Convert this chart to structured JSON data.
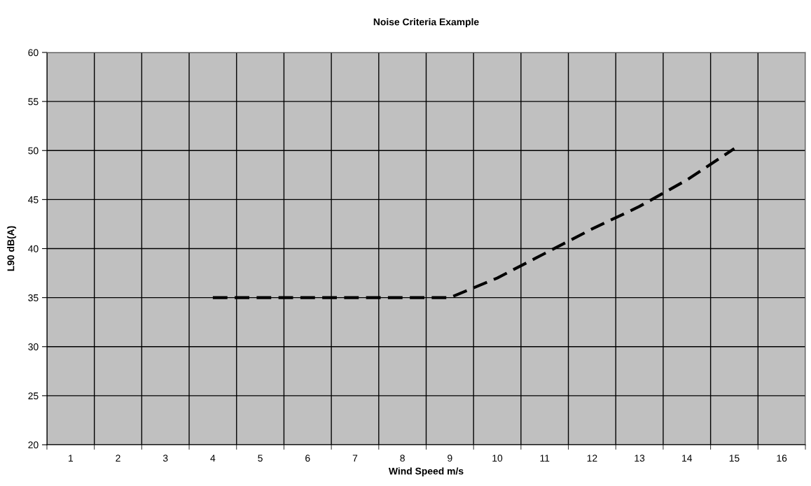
{
  "chart_data": {
    "type": "line",
    "title": "Noise Criteria Example",
    "xlabel": "Wind Speed m/s",
    "ylabel": "L90 dB(A)",
    "categories": [
      "1",
      "2",
      "3",
      "4",
      "5",
      "6",
      "7",
      "8",
      "9",
      "10",
      "11",
      "12",
      "13",
      "14",
      "15",
      "16"
    ],
    "series": [
      {
        "color": "#000000",
        "values": [
          null,
          null,
          null,
          35,
          35,
          35,
          35,
          35,
          35,
          37,
          39.5,
          42,
          44.3,
          47,
          50.2,
          null
        ]
      }
    ],
    "ylim": [
      20,
      60
    ],
    "yticks": [
      20,
      25,
      30,
      35,
      40,
      45,
      50,
      55,
      60
    ],
    "grid": true,
    "line_style": "dashed",
    "marker": "none"
  }
}
